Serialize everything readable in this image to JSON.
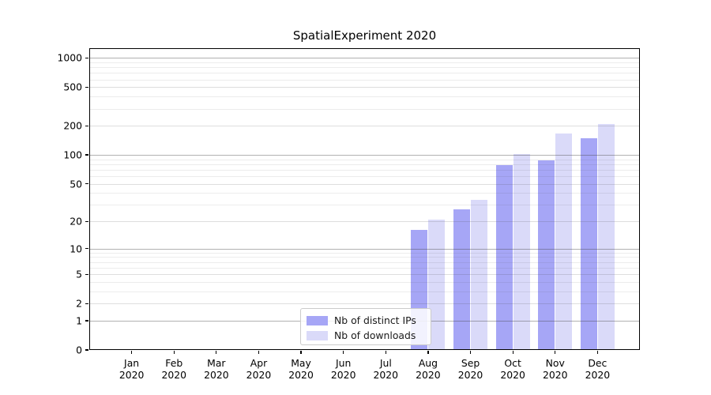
{
  "chart_data": {
    "type": "bar",
    "title": "SpatialExperiment 2020",
    "categories": [
      "Jan 2020",
      "Feb 2020",
      "Mar 2020",
      "Apr 2020",
      "May 2020",
      "Jun 2020",
      "Jul 2020",
      "Aug 2020",
      "Sep 2020",
      "Oct 2020",
      "Nov 2020",
      "Dec 2020"
    ],
    "series": [
      {
        "name": "Nb of distinct IPs",
        "color": "#a6a6f6",
        "values": [
          0,
          0,
          0,
          0,
          0,
          0,
          0,
          16,
          27,
          79,
          87,
          149
        ]
      },
      {
        "name": "Nb of downloads",
        "color": "#dadaf9",
        "values": [
          0,
          0,
          0,
          0,
          0,
          0,
          0,
          21,
          34,
          103,
          167,
          207
        ]
      }
    ],
    "y_ticks": [
      0,
      1,
      2,
      5,
      10,
      20,
      50,
      100,
      200,
      500,
      1000
    ],
    "y_scale": "log10(1+v)",
    "ylim": [
      0,
      1260
    ],
    "xlabel": "",
    "ylabel": "",
    "grid": "both",
    "legend_position": "lower center"
  },
  "legend": {
    "items": [
      {
        "label": "Nb of distinct IPs",
        "color": "#a6a6f6"
      },
      {
        "label": "Nb of downloads",
        "color": "#dadaf9"
      }
    ]
  },
  "colors": {
    "background": "#ffffff",
    "spine": "#000000",
    "grid_decade": "#bdbdbd",
    "grid_mid": "#e1e1e1",
    "grid_minor": "#ededed",
    "legend_border": "#cccccc"
  }
}
